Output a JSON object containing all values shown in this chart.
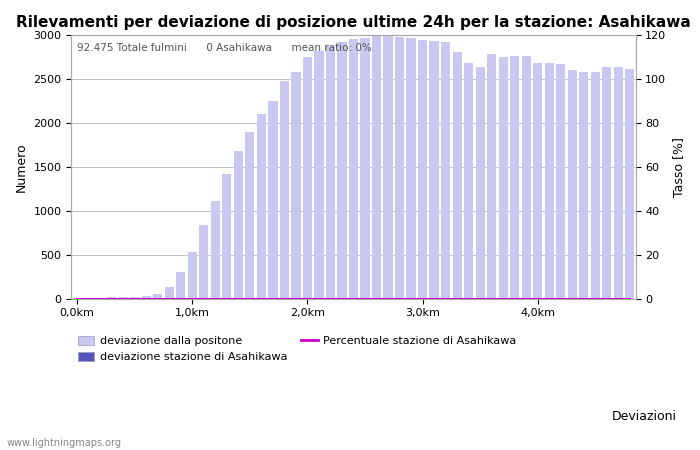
{
  "title": "Rilevamenti per deviazione di posizione ultime 24h per la stazione: Asahikawa",
  "xlabel": "Deviazioni",
  "ylabel_left": "Numero",
  "ylabel_right": "Tasso [%]",
  "annotation": "92.475 Totale fulmini      0 Asahikawa      mean ratio: 0%",
  "watermark": "www.lightningmaps.org",
  "bar_values": [
    5,
    8,
    10,
    12,
    15,
    18,
    25,
    50,
    130,
    300,
    525,
    835,
    1110,
    1425,
    1680,
    1900,
    2100,
    2250,
    2480,
    2580,
    2750,
    2820,
    2875,
    2920,
    2960,
    2970,
    2990,
    2990,
    2985,
    2970,
    2950,
    2940,
    2920,
    2810,
    2690,
    2640,
    2790,
    2750,
    2760,
    2760,
    2690,
    2680,
    2670,
    2600,
    2580,
    2580,
    2640,
    2640,
    2620
  ],
  "station_values": [
    0,
    0,
    0,
    0,
    0,
    0,
    0,
    0,
    0,
    0,
    0,
    0,
    0,
    0,
    0,
    0,
    0,
    0,
    0,
    0,
    0,
    0,
    0,
    0,
    0,
    0,
    0,
    0,
    0,
    0,
    0,
    0,
    0,
    0,
    0,
    0,
    0,
    0,
    0,
    0,
    0,
    0,
    0,
    0,
    0,
    0,
    0,
    0,
    0
  ],
  "ratio_values": [
    0,
    0,
    0,
    0,
    0,
    0,
    0,
    0,
    0,
    0,
    0,
    0,
    0,
    0,
    0,
    0,
    0,
    0,
    0,
    0,
    0,
    0,
    0,
    0,
    0,
    0,
    0,
    0,
    0,
    0,
    0,
    0,
    0,
    0,
    0,
    0,
    0,
    0,
    0,
    0,
    0,
    0,
    0,
    0,
    0,
    0,
    0,
    0,
    0
  ],
  "bar_color_light": "#c8c8f0",
  "bar_color_dark": "#5555bb",
  "ratio_line_color": "#cc00cc",
  "ylim_left": [
    0,
    3000
  ],
  "ylim_right": [
    0,
    120
  ],
  "xtick_positions": [
    0,
    10,
    20,
    30,
    40
  ],
  "xtick_labels": [
    "0,0km",
    "1,0km",
    "2,0km",
    "3,0km",
    "4,0km"
  ],
  "ytick_left": [
    0,
    500,
    1000,
    1500,
    2000,
    2500,
    3000
  ],
  "ytick_right": [
    0,
    20,
    40,
    60,
    80,
    100,
    120
  ],
  "bg_color": "#ffffff",
  "grid_color": "#aaaaaa",
  "title_fontsize": 11,
  "label_fontsize": 9,
  "tick_fontsize": 8,
  "legend_label_light": "deviazione dalla positone",
  "legend_label_dark": "deviazione stazione di Asahikawa",
  "legend_label_ratio": "Percentuale stazione di Asahikawa"
}
